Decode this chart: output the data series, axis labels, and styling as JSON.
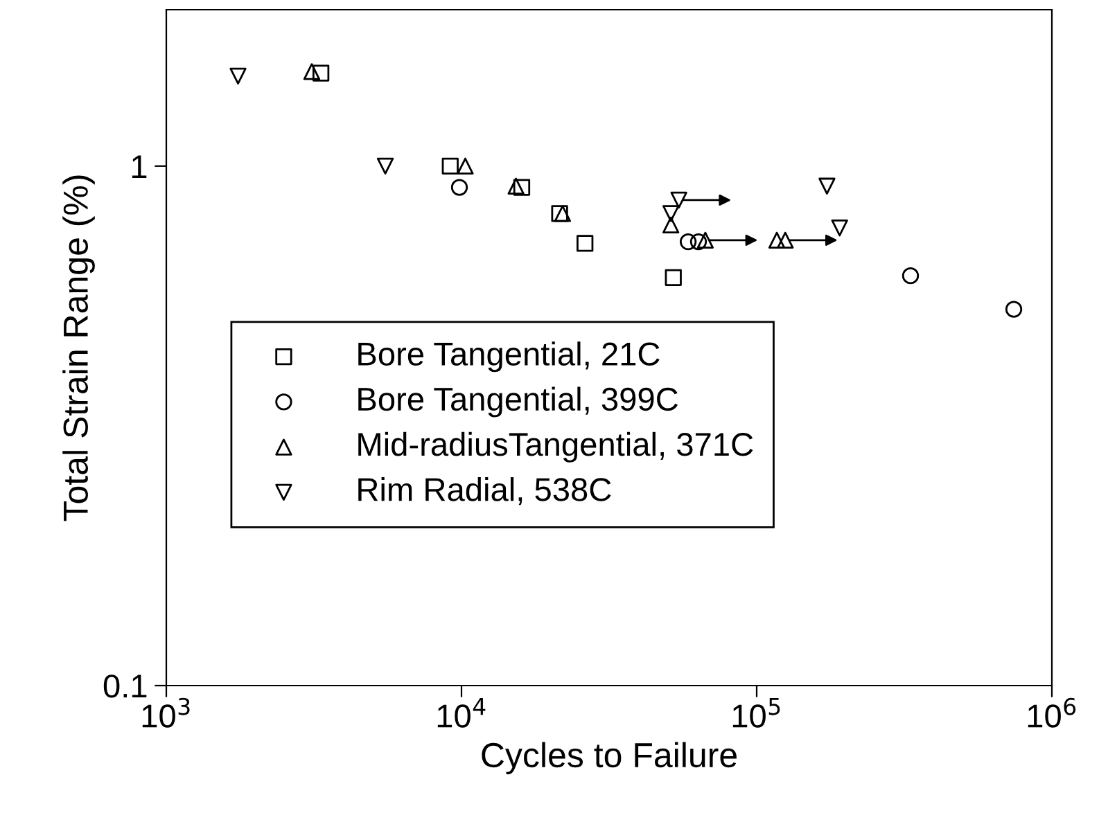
{
  "chart_data": {
    "type": "scatter",
    "xlabel": "Cycles to Failure",
    "ylabel": "Total Strain Range (%)",
    "log": "xy",
    "xlim": [
      1000,
      1000000
    ],
    "ylim": [
      0.1,
      2
    ],
    "xticks": [
      {
        "value": 1000,
        "label": "10$^{3}$"
      },
      {
        "value": 10000,
        "label": "10$^{4}$"
      },
      {
        "value": 100000,
        "label": "10$^{5}$"
      },
      {
        "value": 1000000,
        "label": "10$^{6}$"
      }
    ],
    "yticks": [
      0.1,
      1
    ],
    "grid": false,
    "legend": "bottom left",
    "series": [
      {
        "name": "Bore Tangential, 21C",
        "color": "#000000",
        "marker": "square",
        "x": [
          3340,
          9160,
          16000,
          21500,
          26200,
          52200
        ],
        "values": [
          1.51,
          1.0,
          0.91,
          0.81,
          0.71,
          0.61
        ]
      },
      {
        "name": "Bore Tangential, 399C",
        "color": "#000000",
        "marker": "circle",
        "x": [
          9840,
          58600,
          63500,
          332000,
          743000
        ],
        "values": [
          0.91,
          0.715,
          0.715,
          0.615,
          0.53
        ]
      },
      {
        "name": "Mid-radiusTangential, 371C",
        "color": "#000000",
        "marker": "triangle",
        "x": [
          3110,
          10300,
          15300,
          22000,
          51200,
          67000,
          117000,
          125000
        ],
        "values": [
          1.52,
          1.0,
          0.915,
          0.81,
          0.77,
          0.72,
          0.72,
          0.72
        ]
      },
      {
        "name": "Rim Radial, 538C",
        "color": "#000000",
        "marker": "triangle_down",
        "x": [
          1750,
          5520,
          54500,
          51200,
          173000,
          191000
        ],
        "values": [
          1.49,
          1.0,
          0.86,
          0.81,
          0.915,
          0.76
        ]
      }
    ]
  }
}
